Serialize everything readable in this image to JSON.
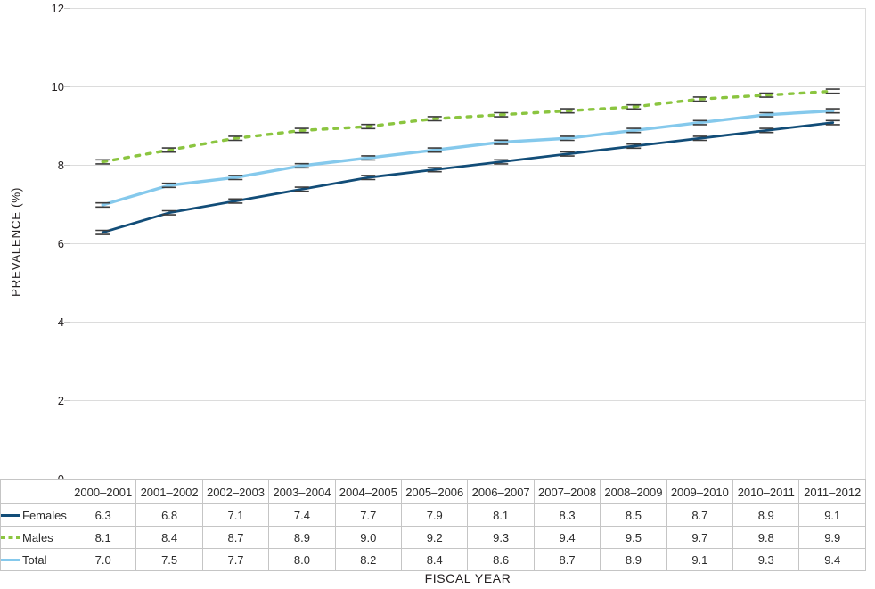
{
  "chart_data": {
    "type": "line",
    "title": "",
    "xlabel": "FISCAL YEAR",
    "ylabel": "PREVALENCE (%)",
    "ylim": [
      0,
      12
    ],
    "ytick_step": 2,
    "grid": "horizontal",
    "legend_position": "table-row-headers",
    "point_marker": "error-bar-caps",
    "marker_color": "#3d3d3d",
    "gridline_color": "#dcdcdc",
    "axis_color": "#c5c5c5",
    "categories": [
      "2000–2001",
      "2001–2002",
      "2002–2003",
      "2003–2004",
      "2004–2005",
      "2005–2006",
      "2006–2007",
      "2007–2008",
      "2008–2009",
      "2009–2010",
      "2010–2011",
      "2011–2012"
    ],
    "series": [
      {
        "name": "Females",
        "style": "solid",
        "color": "#124d78",
        "values": [
          6.3,
          6.8,
          7.1,
          7.4,
          7.7,
          7.9,
          8.1,
          8.3,
          8.5,
          8.7,
          8.9,
          9.1
        ]
      },
      {
        "name": "Males",
        "style": "dashed",
        "color": "#8bc540",
        "values": [
          8.1,
          8.4,
          8.7,
          8.9,
          9.0,
          9.2,
          9.3,
          9.4,
          9.5,
          9.7,
          9.8,
          9.9
        ]
      },
      {
        "name": "Total",
        "style": "solid",
        "color": "#85c9ec",
        "values": [
          7.0,
          7.5,
          7.7,
          8.0,
          8.2,
          8.4,
          8.6,
          8.7,
          8.9,
          9.1,
          9.3,
          9.4
        ]
      }
    ]
  }
}
